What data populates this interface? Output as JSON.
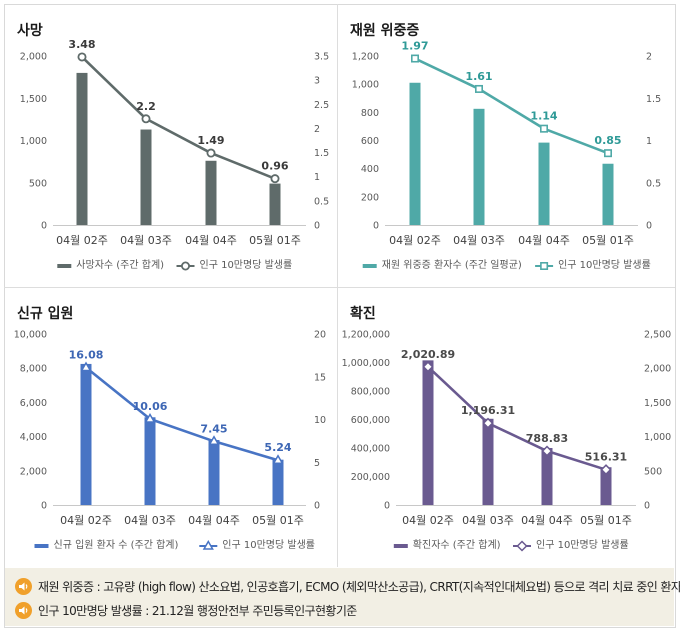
{
  "categories": [
    "04월 02주",
    "04월 03주",
    "04월 04주",
    "05월 01주"
  ],
  "charts": [
    {
      "title": "사망",
      "type": "bar+line",
      "color": "#5f6b6a",
      "bar_values": [
        1800,
        1130,
        760,
        490
      ],
      "line_values": [
        3.48,
        2.2,
        1.49,
        0.96
      ],
      "line_labels": [
        "3.48",
        "2.2",
        "1.49",
        "0.96"
      ],
      "label_color": "#3a3a3a",
      "marker": "circle",
      "left_ticks": [
        "0",
        "500",
        "1,000",
        "1,500",
        "2,000"
      ],
      "right_ticks": [
        "0",
        "0.5",
        "1",
        "1.5",
        "2",
        "2.5",
        "3",
        "3.5"
      ],
      "left_max": 2000,
      "right_max": 3.5,
      "legend_bar": "사망자수 (주간 합계)",
      "legend_line": "인구 10만명당 발생률"
    },
    {
      "title": "재원 위중증",
      "type": "bar+line",
      "color": "#4fa9a7",
      "bar_values": [
        1010,
        825,
        585,
        435
      ],
      "line_values": [
        1.97,
        1.61,
        1.14,
        0.85
      ],
      "line_labels": [
        "1.97",
        "1.61",
        "1.14",
        "0.85"
      ],
      "label_color": "#2f9a97",
      "marker": "square",
      "left_ticks": [
        "0",
        "200",
        "400",
        "600",
        "800",
        "1,000",
        "1,200"
      ],
      "right_ticks": [
        "0",
        "0.5",
        "1",
        "1.5",
        "2"
      ],
      "left_max": 1200,
      "right_max": 2,
      "legend_bar": "재원 위중증 환자수 (주간 일평균)",
      "legend_line": "인구 10만명당 발생률"
    },
    {
      "title": "신규 입원",
      "type": "bar+line",
      "color": "#4874c4",
      "bar_values": [
        8250,
        5130,
        3800,
        2650
      ],
      "line_values": [
        16.08,
        10.06,
        7.45,
        5.24
      ],
      "line_labels": [
        "16.08",
        "10.06",
        "7.45",
        "5.24"
      ],
      "label_color": "#3d66b4",
      "marker": "triangle",
      "left_ticks": [
        "0",
        "2,000",
        "4,000",
        "6,000",
        "8,000",
        "10,000"
      ],
      "right_ticks": [
        "0",
        "5",
        "10",
        "15",
        "20"
      ],
      "left_max": 10000,
      "right_max": 20,
      "legend_bar": "신규 입원 환자 수 (주간 합계)",
      "legend_line": "인구 10만명당 발생률"
    },
    {
      "title": "확진",
      "type": "bar+line",
      "color": "#6a5a90",
      "bar_values": [
        1015000,
        605000,
        400000,
        265000
      ],
      "line_values": [
        2020.89,
        1196.31,
        788.83,
        516.31
      ],
      "line_labels": [
        "2,020.89",
        "1,196.31",
        "788.83",
        "516.31"
      ],
      "label_color": "#4a4a4a",
      "marker": "diamond",
      "left_ticks": [
        "0",
        "200,000",
        "400,000",
        "600,000",
        "800,000",
        "1,000,000",
        "1,200,000"
      ],
      "right_ticks": [
        "0",
        "500",
        "1,000",
        "1,500",
        "2,000",
        "2,500"
      ],
      "left_max": 1200000,
      "right_max": 2500,
      "legend_bar": "확진자수 (주간 합계)",
      "legend_line": "인구 10만명당 발생률"
    }
  ],
  "chart_data": [
    {
      "type": "bar",
      "title": "사망",
      "categories": [
        "04월 02주",
        "04월 03주",
        "04월 04주",
        "05월 01주"
      ],
      "series": [
        {
          "name": "사망자수 (주간 합계)",
          "values": [
            1800,
            1130,
            760,
            490
          ]
        },
        {
          "name": "인구 10만명당 발생률",
          "values": [
            3.48,
            2.2,
            1.49,
            0.96
          ]
        }
      ],
      "ylim": [
        0,
        2000
      ],
      "y2lim": [
        0,
        3.5
      ]
    },
    {
      "type": "bar",
      "title": "재원 위중증",
      "categories": [
        "04월 02주",
        "04월 03주",
        "04월 04주",
        "05월 01주"
      ],
      "series": [
        {
          "name": "재원 위중증 환자수 (주간 일평균)",
          "values": [
            1010,
            825,
            585,
            435
          ]
        },
        {
          "name": "인구 10만명당 발생률",
          "values": [
            1.97,
            1.61,
            1.14,
            0.85
          ]
        }
      ],
      "ylim": [
        0,
        1200
      ],
      "y2lim": [
        0,
        2
      ]
    },
    {
      "type": "bar",
      "title": "신규 입원",
      "categories": [
        "04월 02주",
        "04월 03주",
        "04월 04주",
        "05월 01주"
      ],
      "series": [
        {
          "name": "신규 입원 환자 수 (주간 합계)",
          "values": [
            8250,
            5130,
            3800,
            2650
          ]
        },
        {
          "name": "인구 10만명당 발생률",
          "values": [
            16.08,
            10.06,
            7.45,
            5.24
          ]
        }
      ],
      "ylim": [
        0,
        10000
      ],
      "y2lim": [
        0,
        20
      ]
    },
    {
      "type": "bar",
      "title": "확진",
      "categories": [
        "04월 02주",
        "04월 03주",
        "04월 04주",
        "05월 01주"
      ],
      "series": [
        {
          "name": "확진자수 (주간 합계)",
          "values": [
            1015000,
            605000,
            400000,
            265000
          ]
        },
        {
          "name": "인구 10만명당 발생률",
          "values": [
            2020.89,
            1196.31,
            788.83,
            516.31
          ]
        }
      ],
      "ylim": [
        0,
        1200000
      ],
      "y2lim": [
        0,
        2500
      ]
    }
  ],
  "notes": [
    {
      "icon": "speaker-icon",
      "text": "재원 위중증 : 고유량 (high flow) 산소요법, 인공호흡기, ECMO (체외막산소공급), CRRT(지속적인대체요법) 등으로 격리 치료 중인 환자"
    },
    {
      "icon": "speaker-icon",
      "text": "인구 10만명당 발생률 : 21.12월 행정안전부 주민등록인구현황기준"
    }
  ]
}
